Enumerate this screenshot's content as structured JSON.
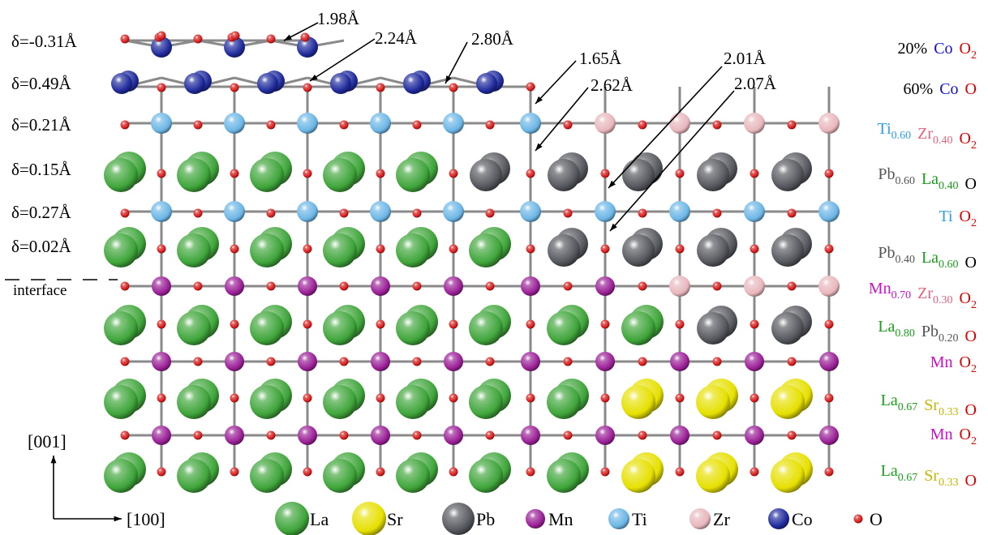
{
  "colors": {
    "La": "#3fa53a",
    "Sr": "#e6e000",
    "Pb": "#55585e",
    "Mn": "#9a1f96",
    "Ti": "#6cb6e6",
    "Zr": "#e8b7bd",
    "Co": "#1f2a9c",
    "O": "#d51a1a",
    "bond": "#8a8a8a",
    "text_black": "#000000",
    "text_blue": "#1010d8",
    "text_red": "#e00000",
    "text_ti": "#2ea0e8",
    "text_zr": "#e8607c",
    "text_pb": "#555555",
    "text_la": "#1a9e1a",
    "text_mn": "#cc10cc",
    "text_sr": "#c8b400"
  },
  "deltas": [
    "δ=-0.31Å",
    "δ=0.49Å",
    "δ=0.21Å",
    "δ=0.15Å",
    "δ=0.27Å",
    "δ=0.02Å"
  ],
  "interface_label": "interface",
  "distances": [
    "1.98Å",
    "2.24Å",
    "2.80Å",
    "1.65Å",
    "2.62Å",
    "2.01Å",
    "2.07Å"
  ],
  "layers": [
    [
      {
        "t": "20%",
        "c": "text_black"
      },
      {
        "t": "Co",
        "c": "text_blue"
      },
      {
        "t": "O",
        "s": "2",
        "c": "text_red"
      }
    ],
    [
      {
        "t": "60%",
        "c": "text_black"
      },
      {
        "t": "Co",
        "c": "text_blue"
      },
      {
        "t": "O",
        "c": "text_red"
      }
    ],
    [
      {
        "t": "Ti",
        "s": "0.60",
        "c": "text_ti"
      },
      {
        "t": "Zr",
        "s": "0.40",
        "c": "text_zr"
      },
      {
        "t": "O",
        "s": "2",
        "c": "text_red"
      }
    ],
    [
      {
        "t": "Pb",
        "s": "0.60",
        "c": "text_pb"
      },
      {
        "t": "La",
        "s": "0.40",
        "c": "text_la"
      },
      {
        "t": "O",
        "c": "text_black"
      }
    ],
    [
      {
        "t": "Ti",
        "c": "text_ti"
      },
      {
        "t": "O",
        "s": "2",
        "c": "text_red"
      }
    ],
    [
      {
        "t": "Pb",
        "s": "0.40",
        "c": "text_pb"
      },
      {
        "t": "La",
        "s": "0.60",
        "c": "text_la"
      },
      {
        "t": "O",
        "c": "text_black"
      }
    ],
    [
      {
        "t": "Mn",
        "s": "0.70",
        "c": "text_mn"
      },
      {
        "t": "Zr",
        "s": "0.30",
        "c": "text_zr"
      },
      {
        "t": "O",
        "s": "2",
        "c": "text_red"
      }
    ],
    [
      {
        "t": "La",
        "s": "0.80",
        "c": "text_la"
      },
      {
        "t": "Pb",
        "s": "0.20",
        "c": "text_pb"
      },
      {
        "t": "O",
        "c": "text_red"
      }
    ],
    [
      {
        "t": "Mn",
        "c": "text_mn"
      },
      {
        "t": "O",
        "s": "2",
        "c": "text_red"
      }
    ],
    [
      {
        "t": "La",
        "s": "0.67",
        "c": "text_la"
      },
      {
        "t": "Sr",
        "s": "0.33",
        "c": "text_sr"
      },
      {
        "t": "O",
        "c": "text_red"
      }
    ],
    [
      {
        "t": "Mn",
        "c": "text_mn"
      },
      {
        "t": "O",
        "s": "2",
        "c": "text_red"
      }
    ],
    [
      {
        "t": "La",
        "s": "0.67",
        "c": "text_la"
      },
      {
        "t": "Sr",
        "s": "0.33",
        "c": "text_sr"
      },
      {
        "t": "O",
        "c": "text_red"
      }
    ]
  ],
  "axes": {
    "vertical": "[001]",
    "horizontal": "[100]"
  },
  "legend": [
    {
      "el": "La",
      "label": "La"
    },
    {
      "el": "Sr",
      "label": "Sr"
    },
    {
      "el": "Pb",
      "label": "Pb"
    },
    {
      "el": "Mn",
      "label": "Mn"
    },
    {
      "el": "Ti",
      "label": "Ti"
    },
    {
      "el": "Zr",
      "label": "Zr"
    },
    {
      "el": "Co",
      "label": "Co"
    },
    {
      "el": "O",
      "label": "O"
    }
  ]
}
